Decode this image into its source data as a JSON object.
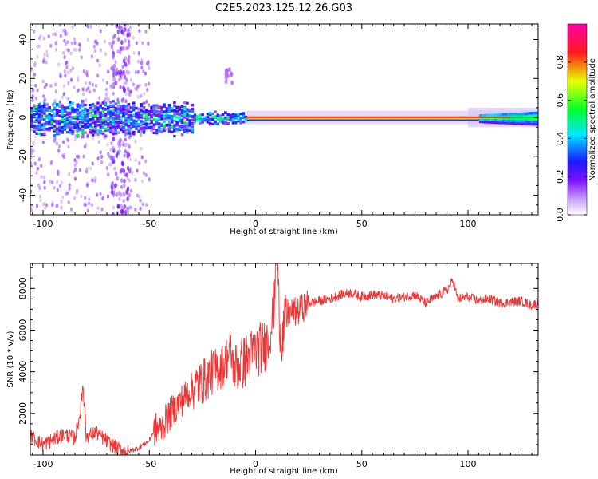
{
  "title": "C2E5.2023.125.12.26.G03",
  "chart_data": [
    {
      "type": "heatmap",
      "name": "spectrogram",
      "xlabel": "Height of straight line (km)",
      "ylabel": "Frequency (Hz)",
      "xlim": [
        -106,
        133
      ],
      "ylim": [
        -50,
        48
      ],
      "x_ticks": [
        -100,
        -50,
        0,
        50,
        100
      ],
      "y_ticks": [
        -40,
        -20,
        0,
        20,
        40
      ],
      "colorbar": {
        "label": "Normalized spectral amplitude",
        "range": [
          0,
          1
        ],
        "ticks": [
          "0.0",
          "0.2",
          "0.4",
          "0.6",
          "0.8"
        ],
        "tick_values": [
          0.0,
          0.2,
          0.4,
          0.6,
          0.8
        ],
        "colors": [
          "#ffffff",
          "#8a2be2",
          "#0000ff",
          "#00ffff",
          "#00ff00",
          "#ffff00",
          "#ff0000",
          "#ff00aa"
        ]
      },
      "band_segments": [
        {
          "x0": -106,
          "x1": -30,
          "halfwidth_hz": 6,
          "amplitude": 0.25
        },
        {
          "x0": -30,
          "x1": -5,
          "halfwidth_hz": 3,
          "amplitude": 0.35
        },
        {
          "x0": -5,
          "x1": 105,
          "halfwidth_hz": 1.5,
          "amplitude": 0.95
        },
        {
          "x0": 105,
          "x1": 133,
          "halfwidth_hz": 3,
          "amplitude": 0.5
        }
      ]
    },
    {
      "type": "line",
      "name": "snr",
      "xlabel": "Height of straight line (km)",
      "ylabel": "SNR (10 * v/v)",
      "xlim": [
        -106,
        133
      ],
      "ylim": [
        0,
        9200
      ],
      "x_ticks": [
        -100,
        -50,
        0,
        50,
        100
      ],
      "y_ticks": [
        2000,
        4000,
        6000,
        8000
      ],
      "color": "#ee3333",
      "series": [
        {
          "name": "SNR",
          "x": [
            -106,
            -100,
            -95,
            -90,
            -85,
            -81,
            -80,
            -75,
            -70,
            -65,
            -60,
            -55,
            -50,
            -47,
            -45,
            -40,
            -35,
            -30,
            -25,
            -20,
            -15,
            -12,
            -10,
            -5,
            0,
            5,
            8,
            10,
            12,
            15,
            20,
            25,
            30,
            35,
            40,
            45,
            50,
            55,
            60,
            65,
            70,
            75,
            80,
            85,
            90,
            93,
            95,
            100,
            105,
            110,
            115,
            120,
            125,
            130,
            133
          ],
          "y": [
            900,
            500,
            750,
            1000,
            800,
            2800,
            900,
            1100,
            650,
            300,
            150,
            350,
            700,
            1300,
            1200,
            2000,
            2600,
            3200,
            3500,
            4000,
            4300,
            5000,
            4200,
            4500,
            5000,
            5300,
            6500,
            8800,
            5500,
            6800,
            6900,
            7300,
            7400,
            7500,
            7700,
            7800,
            7600,
            7700,
            7650,
            7500,
            7600,
            7700,
            7300,
            7600,
            7900,
            8400,
            7500,
            7600,
            7400,
            7500,
            7300,
            7350,
            7400,
            7200,
            7300
          ]
        }
      ]
    }
  ]
}
